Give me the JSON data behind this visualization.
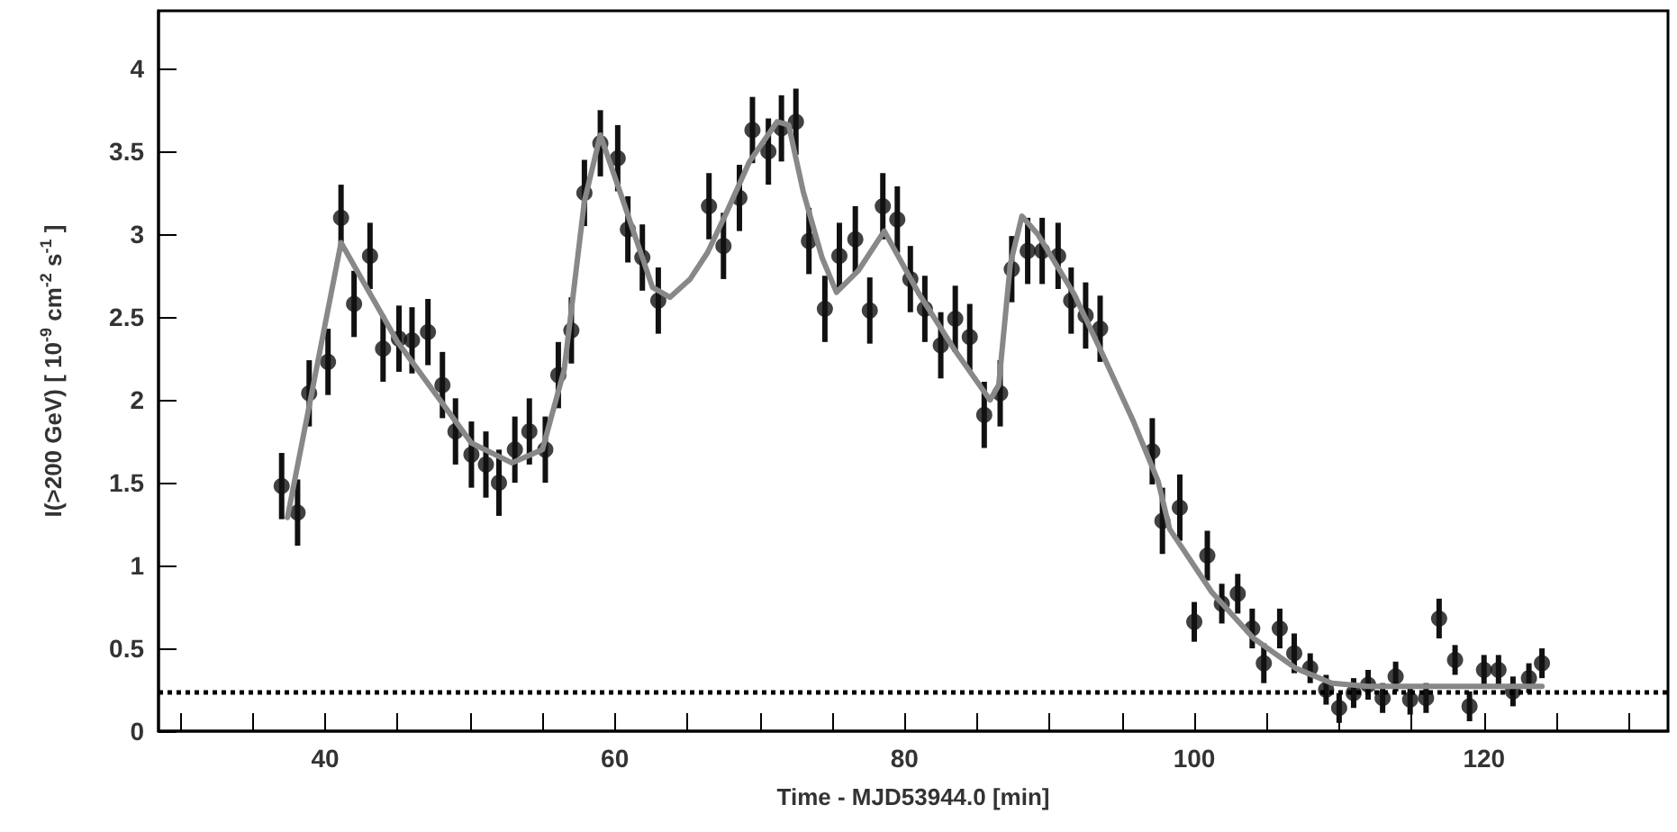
{
  "chart_data": {
    "type": "scatter",
    "xlabel": "Time - MJD53944.0 [min]",
    "ylabel": "I(>200 GeV) [ 10$^{-9}$ cm$^{-2}$ s$^{-1}$ ]",
    "xlim": [
      28.5,
      132.7
    ],
    "ylim": [
      0,
      4.35
    ],
    "xticks": [
      {
        "value": 30,
        "label": null
      },
      {
        "value": 35,
        "label": null
      },
      40,
      {
        "value": 45,
        "label": null
      },
      {
        "value": 50,
        "label": null
      },
      {
        "value": 55,
        "label": null
      },
      60,
      {
        "value": 65,
        "label": null
      },
      {
        "value": 70,
        "label": null
      },
      {
        "value": 75,
        "label": null
      },
      80,
      {
        "value": 85,
        "label": null
      },
      {
        "value": 90,
        "label": null
      },
      {
        "value": 95,
        "label": null
      },
      100,
      {
        "value": 105,
        "label": null
      },
      {
        "value": 110,
        "label": null
      },
      {
        "value": 115,
        "label": null
      },
      120,
      {
        "value": 125,
        "label": null
      },
      {
        "value": 130,
        "label": null
      }
    ],
    "yticks": [
      0,
      0.5,
      1,
      1.5,
      2,
      2.5,
      3,
      3.5,
      4
    ],
    "series": [
      {
        "color": "#111111",
        "marker": "circle",
        "x": [
          37.0,
          38.1,
          38.9,
          40.2,
          41.1,
          42.0,
          43.1,
          44.0,
          45.1,
          46.0,
          47.1,
          48.1,
          49.0,
          50.1,
          51.1,
          52.0,
          53.1,
          54.1,
          55.2,
          56.1,
          57.0,
          57.9,
          59.0,
          60.2,
          60.9,
          61.9,
          63.0,
          66.5,
          67.5,
          68.6,
          69.5,
          70.6,
          71.5,
          72.5,
          73.4,
          74.5,
          75.5,
          76.6,
          77.6,
          78.5,
          79.5,
          80.4,
          81.4,
          82.5,
          83.5,
          84.5,
          85.5,
          86.6,
          87.4,
          88.5,
          89.5,
          90.6,
          91.5,
          92.5,
          93.5,
          97.1,
          97.8,
          99.0,
          100.0,
          100.9,
          101.9,
          103.0,
          104.0,
          104.8,
          105.9,
          106.9,
          108.0,
          109.1,
          110.0,
          111.0,
          112.0,
          113.0,
          113.9,
          114.9,
          116.0,
          116.9,
          118.0,
          119.0,
          120.0,
          121.0,
          122.0,
          123.1,
          124.0
        ],
        "values": [
          1.48,
          1.32,
          2.04,
          2.23,
          3.1,
          2.58,
          2.87,
          2.31,
          2.37,
          2.36,
          2.41,
          2.09,
          1.81,
          1.67,
          1.61,
          1.5,
          1.7,
          1.81,
          1.7,
          2.15,
          2.42,
          3.25,
          3.55,
          3.46,
          3.03,
          2.86,
          2.6,
          3.17,
          2.93,
          3.22,
          3.63,
          3.5,
          3.64,
          3.68,
          2.96,
          2.55,
          2.87,
          2.97,
          2.54,
          3.17,
          3.09,
          2.73,
          2.55,
          2.33,
          2.49,
          2.38,
          1.91,
          2.04,
          2.79,
          2.9,
          2.9,
          2.87,
          2.6,
          2.51,
          2.43,
          1.69,
          1.27,
          1.35,
          0.66,
          1.06,
          0.77,
          0.83,
          0.62,
          0.41,
          0.62,
          0.47,
          0.38,
          0.25,
          0.14,
          0.23,
          0.28,
          0.2,
          0.33,
          0.19,
          0.2,
          0.68,
          0.43,
          0.15,
          0.37,
          0.37,
          0.24,
          0.32,
          0.41
        ],
        "errors": [
          0.2,
          0.2,
          0.2,
          0.2,
          0.2,
          0.2,
          0.2,
          0.2,
          0.2,
          0.2,
          0.2,
          0.2,
          0.2,
          0.2,
          0.2,
          0.2,
          0.2,
          0.2,
          0.2,
          0.2,
          0.2,
          0.2,
          0.2,
          0.2,
          0.2,
          0.2,
          0.2,
          0.2,
          0.2,
          0.2,
          0.2,
          0.2,
          0.2,
          0.2,
          0.2,
          0.2,
          0.2,
          0.2,
          0.2,
          0.2,
          0.2,
          0.2,
          0.2,
          0.2,
          0.2,
          0.2,
          0.2,
          0.2,
          0.2,
          0.2,
          0.2,
          0.2,
          0.2,
          0.2,
          0.2,
          0.2,
          0.2,
          0.2,
          0.12,
          0.15,
          0.12,
          0.12,
          0.12,
          0.12,
          0.12,
          0.12,
          0.09,
          0.09,
          0.09,
          0.09,
          0.09,
          0.09,
          0.09,
          0.09,
          0.09,
          0.12,
          0.09,
          0.09,
          0.09,
          0.09,
          0.09,
          0.09,
          0.09
        ]
      },
      {
        "type": "line",
        "color": "#888888",
        "line_style": "solid",
        "x": [
          37.4,
          41.1,
          45.0,
          50.1,
          52.9,
          55.0,
          56.5,
          57.9,
          59.0,
          60.5,
          62.6,
          63.8,
          65.2,
          66.4,
          67.7,
          69.3,
          71.2,
          72.0,
          73.0,
          74.3,
          75.3,
          76.8,
          78.6,
          81.0,
          83.4,
          85.9,
          86.5,
          87.3,
          88.1,
          89.2,
          91.7,
          93.7,
          95.8,
          97.5,
          98.3,
          101.2,
          104.1,
          107.0,
          109.5,
          112.0,
          124.0
        ],
        "values": [
          1.29,
          2.95,
          2.35,
          1.74,
          1.62,
          1.7,
          2.18,
          3.2,
          3.6,
          3.22,
          2.68,
          2.62,
          2.73,
          2.89,
          3.13,
          3.44,
          3.68,
          3.66,
          3.26,
          2.86,
          2.65,
          2.78,
          3.02,
          2.64,
          2.31,
          2.0,
          2.09,
          2.82,
          3.11,
          3.0,
          2.64,
          2.27,
          1.87,
          1.51,
          1.22,
          0.84,
          0.56,
          0.38,
          0.29,
          0.27,
          0.27
        ]
      }
    ],
    "ref_lines": [
      {
        "axis": "y",
        "value": 0.24,
        "color": "#000000",
        "line_style": "dotted"
      }
    ]
  }
}
